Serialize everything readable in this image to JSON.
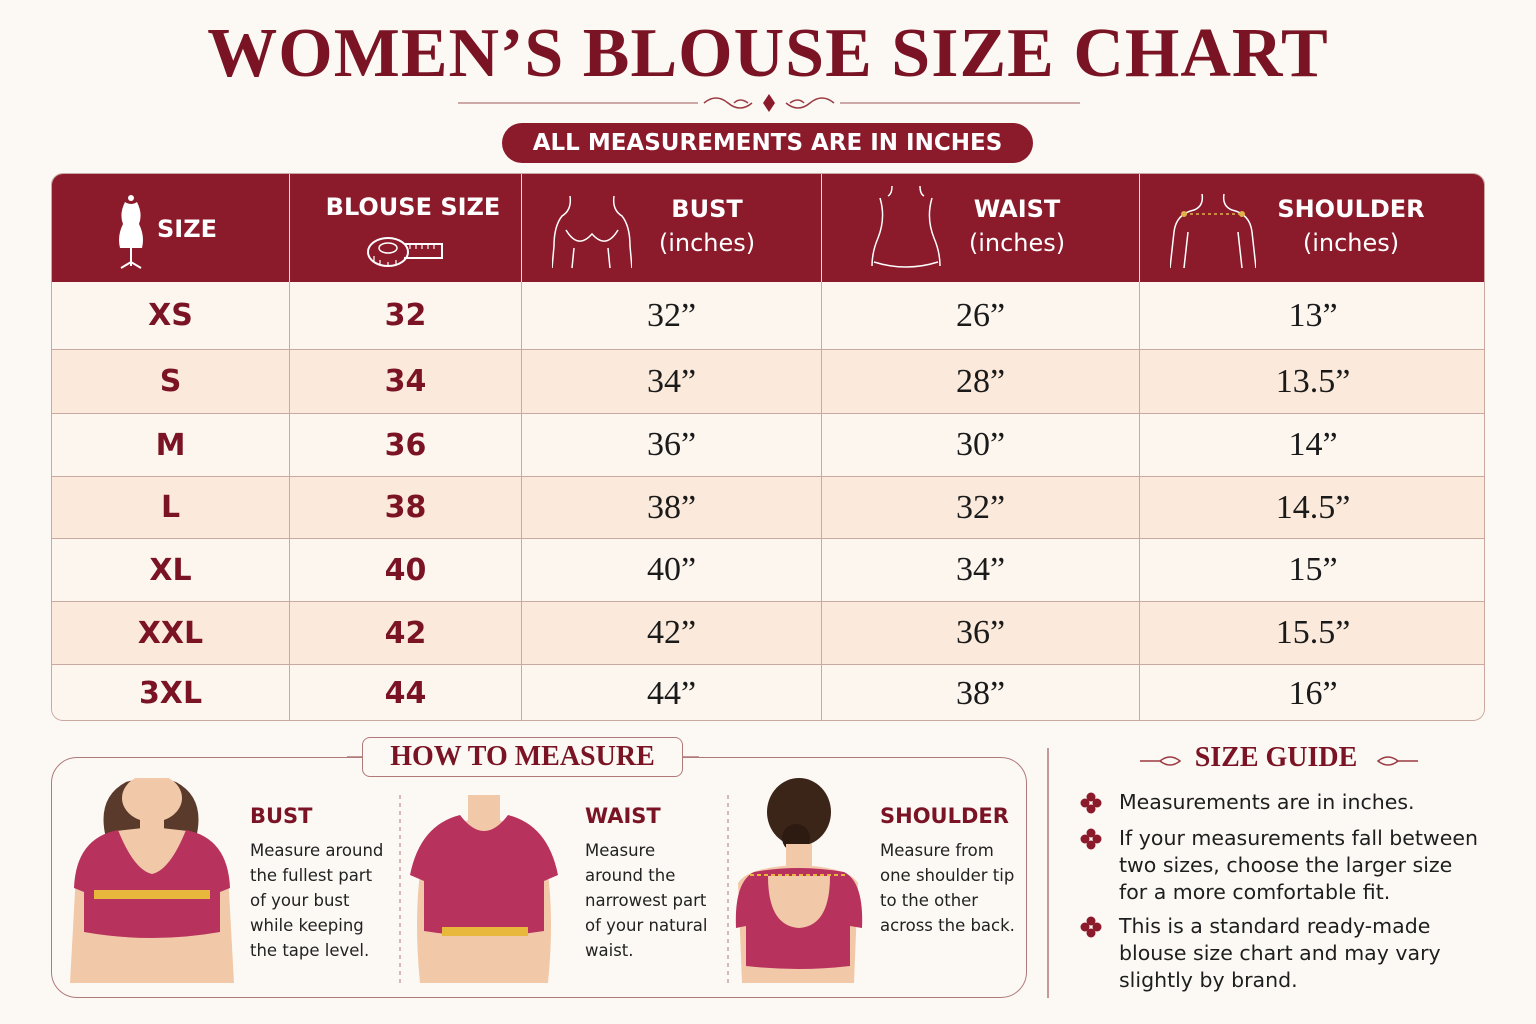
{
  "header": {
    "title": "WOMEN’S BLOUSE SIZE CHART",
    "badge": "ALL MEASUREMENTS ARE IN INCHES"
  },
  "table": {
    "columns": [
      {
        "label": "SIZE"
      },
      {
        "label": "BLOUSE SIZE"
      },
      {
        "label": "BUST",
        "unit": "(inches)"
      },
      {
        "label": "WAIST",
        "unit": "(inches)"
      },
      {
        "label": "SHOULDER",
        "unit": "(inches)"
      }
    ],
    "rows": [
      [
        "XS",
        "32",
        "32”",
        "26”",
        "13”"
      ],
      [
        "S",
        "34",
        "34”",
        "28”",
        "13.5”"
      ],
      [
        "M",
        "36",
        "36”",
        "30”",
        "14”"
      ],
      [
        "L",
        "38",
        "38”",
        "32”",
        "14.5”"
      ],
      [
        "XL",
        "40",
        "40”",
        "34”",
        "15”"
      ],
      [
        "XXL",
        "42",
        "42”",
        "36”",
        "15.5”"
      ],
      [
        "3XL",
        "44",
        "44”",
        "38”",
        "16”"
      ]
    ]
  },
  "how_to_measure": {
    "title": "HOW TO MEASURE",
    "items": [
      {
        "title": "BUST",
        "text": "Measure around the fullest part of your bust while keeping the tape level."
      },
      {
        "title": "WAIST",
        "text": "Measure around the narrowest part of your natural waist."
      },
      {
        "title": "SHOULDER",
        "text": "Measure from one shoulder tip to the other across the back."
      }
    ]
  },
  "size_guide": {
    "title": "SIZE GUIDE",
    "items": [
      "Measurements are in inches.",
      "If your measurements fall between two sizes, choose the larger size for a more comfortable fit.",
      "This is a standard ready-made blouse size chart and may vary slightly by brand."
    ]
  }
}
